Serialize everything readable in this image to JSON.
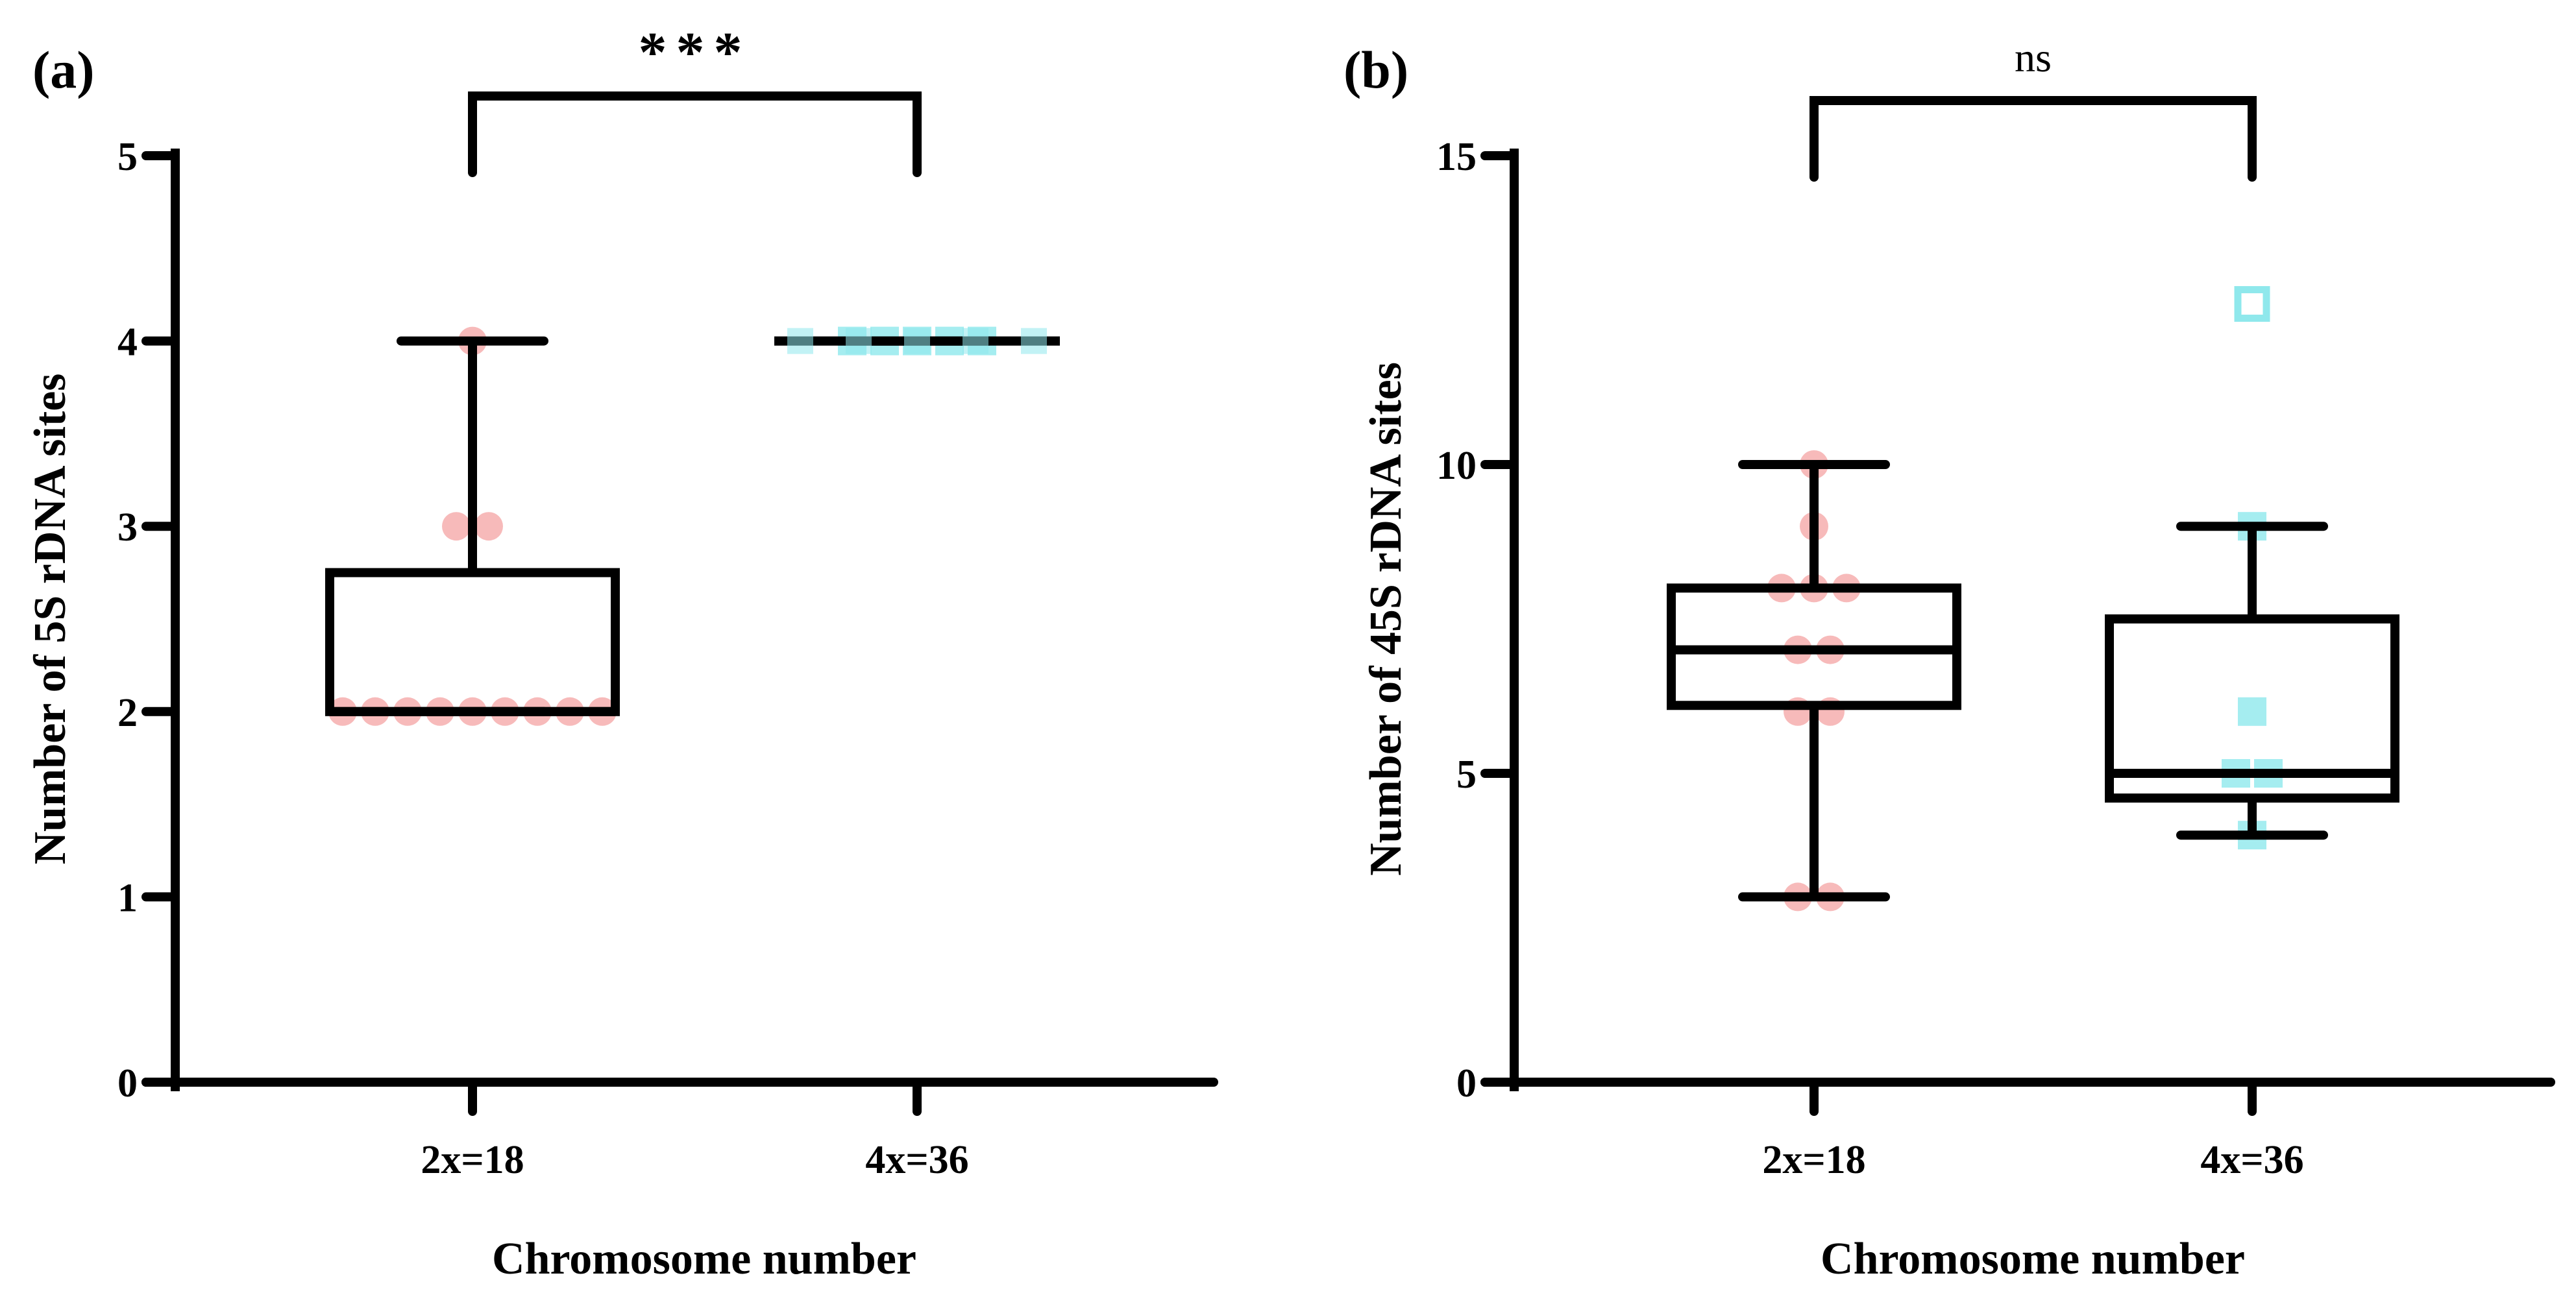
{
  "figure": {
    "panels": [
      {
        "label": "(a)"
      },
      {
        "label": "(b)"
      }
    ]
  },
  "chart_data": [
    {
      "type": "box",
      "panel": "(a)",
      "title": "",
      "xlabel": "Chromosome number",
      "ylabel": "Number of 5S rDNA sites",
      "ylim": [
        0,
        5
      ],
      "yticks": [
        0,
        1,
        2,
        3,
        4,
        5
      ],
      "categories": [
        "2x=18",
        "4x=36"
      ],
      "boxes": [
        {
          "category": "2x=18",
          "min": 2,
          "q1": 2,
          "median": 2,
          "q3": 2.75,
          "max": 4,
          "points": [
            2,
            2,
            2,
            2,
            2,
            2,
            2,
            2,
            2,
            3,
            3,
            4
          ],
          "marker": "circle",
          "color": "#f4a3a3"
        },
        {
          "category": "4x=36",
          "min": 4,
          "q1": 4,
          "median": 4,
          "q3": 4,
          "max": 4,
          "points": [
            4,
            4,
            4,
            4,
            4
          ],
          "marker": "square",
          "color": "#8fe8ec"
        }
      ],
      "significance": {
        "between": [
          "2x=18",
          "4x=36"
        ],
        "label": "***"
      }
    },
    {
      "type": "box",
      "panel": "(b)",
      "title": "",
      "xlabel": "Chromosome number",
      "ylabel": "Number of 45S rDNA sites",
      "ylim": [
        0,
        15
      ],
      "yticks": [
        0,
        5,
        10,
        15
      ],
      "categories": [
        "2x=18",
        "4x=36"
      ],
      "boxes": [
        {
          "category": "2x=18",
          "min": 3,
          "q1": 6.1,
          "median": 7,
          "q3": 8,
          "max": 10,
          "points": [
            3,
            3,
            6,
            6,
            7,
            7,
            8,
            8,
            8,
            9,
            10
          ],
          "marker": "circle",
          "color": "#f4a3a3"
        },
        {
          "category": "4x=36",
          "min": 4,
          "q1": 4.6,
          "median": 5,
          "q3": 7.5,
          "max": 9,
          "points": [
            4,
            5,
            5,
            6,
            9
          ],
          "marker": "square",
          "color": "#8fe8ec",
          "outliers": [
            12.6
          ]
        }
      ],
      "significance": {
        "between": [
          "2x=18",
          "4x=36"
        ],
        "label": "ns"
      }
    }
  ]
}
